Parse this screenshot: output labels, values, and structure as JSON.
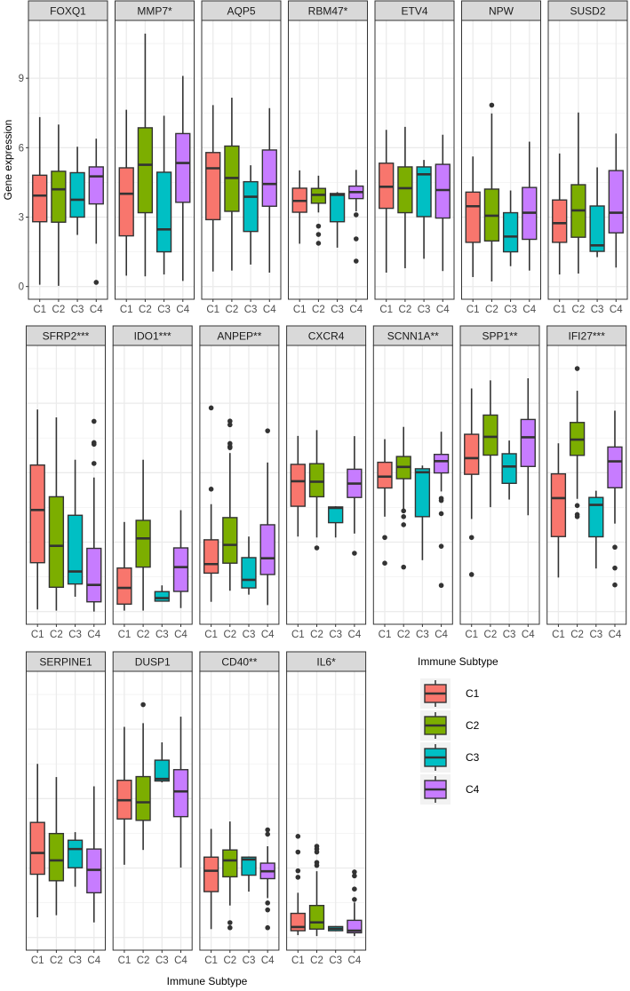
{
  "chart_data": {
    "type": "boxplot",
    "title": "",
    "xlabel": "Immune Subtype",
    "ylabel": "Gene expression",
    "ylim": [
      -0.55,
      11.5
    ],
    "yticks": [
      0,
      3,
      6,
      9
    ],
    "grid": true,
    "categories": [
      "C1",
      "C2",
      "C3",
      "C4"
    ],
    "colors": {
      "C1": "#F8766D",
      "C2": "#7CAE00",
      "C3": "#00BFC4",
      "C4": "#C77CFF"
    },
    "legend": {
      "title": "Immune Subtype",
      "entries": [
        "C1",
        "C2",
        "C3",
        "C4"
      ],
      "placement": "right-bottom"
    },
    "box_fields": [
      "lower_whisker",
      "q1",
      "median",
      "q3",
      "upper_whisker",
      "outliers"
    ],
    "panels": [
      {
        "gene": "FOXQ1",
        "row": 0,
        "col": 0,
        "boxes": [
          [
            0.08,
            2.8,
            3.93,
            4.81,
            7.32,
            []
          ],
          [
            0.03,
            2.78,
            4.2,
            4.98,
            7.0,
            []
          ],
          [
            2.23,
            3.0,
            3.75,
            4.92,
            6.04,
            []
          ],
          [
            1.85,
            3.57,
            4.76,
            5.17,
            6.39,
            [
              0.18
            ]
          ]
        ]
      },
      {
        "gene": "MMP7*",
        "row": 0,
        "col": 1,
        "boxes": [
          [
            0.47,
            2.19,
            4.01,
            5.13,
            7.64,
            []
          ],
          [
            0.44,
            3.19,
            5.26,
            6.86,
            10.93,
            []
          ],
          [
            0.52,
            1.5,
            2.47,
            4.94,
            7.38,
            []
          ],
          [
            0.24,
            3.64,
            5.34,
            6.61,
            9.1,
            []
          ]
        ]
      },
      {
        "gene": "AQP5",
        "row": 0,
        "col": 2,
        "boxes": [
          [
            0.65,
            2.89,
            5.11,
            5.79,
            7.84,
            []
          ],
          [
            0.69,
            3.25,
            4.69,
            6.07,
            8.16,
            []
          ],
          [
            0.95,
            2.38,
            3.88,
            4.53,
            5.24,
            []
          ],
          [
            0.6,
            3.47,
            4.43,
            5.9,
            7.71,
            []
          ]
        ]
      },
      {
        "gene": "RBM47*",
        "row": 0,
        "col": 3,
        "boxes": [
          [
            1.85,
            3.21,
            3.7,
            4.25,
            5.02,
            []
          ],
          [
            3.2,
            3.6,
            3.96,
            4.24,
            4.79,
            [
              2.61,
              2.25,
              1.87
            ]
          ],
          [
            1.68,
            2.8,
            3.96,
            4.02,
            4.08,
            []
          ],
          [
            3.25,
            3.8,
            4.08,
            4.34,
            5.04,
            [
              3.1,
              2.06,
              1.1
            ]
          ]
        ]
      },
      {
        "gene": "ETV4",
        "row": 0,
        "col": 4,
        "boxes": [
          [
            0.6,
            3.38,
            4.31,
            5.33,
            6.77,
            []
          ],
          [
            0.79,
            3.19,
            4.25,
            5.17,
            6.9,
            []
          ],
          [
            1.2,
            3.02,
            4.85,
            5.17,
            5.47,
            []
          ],
          [
            0.67,
            2.96,
            4.17,
            5.28,
            6.56,
            []
          ]
        ]
      },
      {
        "gene": "NPW",
        "row": 0,
        "col": 5,
        "boxes": [
          [
            0.41,
            1.91,
            3.47,
            4.08,
            5.62,
            []
          ],
          [
            0.22,
            1.97,
            3.06,
            4.21,
            7.48,
            [
              7.84
            ]
          ],
          [
            0.88,
            1.5,
            2.16,
            3.19,
            4.15,
            []
          ],
          [
            0.69,
            2.04,
            3.19,
            4.28,
            6.26,
            []
          ]
        ]
      },
      {
        "gene": "SUSD2",
        "row": 0,
        "col": 6,
        "boxes": [
          [
            0.52,
            1.91,
            2.74,
            3.74,
            5.75,
            []
          ],
          [
            0.56,
            2.13,
            3.29,
            4.4,
            7.52,
            []
          ],
          [
            1.27,
            1.52,
            1.78,
            3.48,
            5.15,
            []
          ],
          [
            0.82,
            2.32,
            3.19,
            5.01,
            6.61,
            []
          ]
        ]
      },
      {
        "gene": "SFRP2***",
        "row": 1,
        "col": 0,
        "boxes": [
          [
            0.09,
            2.11,
            4.39,
            6.33,
            8.73,
            []
          ],
          [
            0.04,
            1.05,
            2.84,
            4.96,
            8.39,
            []
          ],
          [
            0.64,
            1.19,
            1.73,
            4.16,
            6.56,
            []
          ],
          [
            0.0,
            0.42,
            1.15,
            2.73,
            5.79,
            [
              8.22,
              7.3,
              7.23,
              6.4
            ]
          ]
        ]
      },
      {
        "gene": "IDO1***",
        "row": 1,
        "col": 1,
        "boxes": [
          [
            0.04,
            0.32,
            1.02,
            1.88,
            3.87,
            []
          ],
          [
            0.04,
            1.92,
            3.16,
            3.94,
            6.56,
            []
          ],
          [
            0.45,
            0.45,
            0.58,
            0.86,
            1.13,
            []
          ],
          [
            0.15,
            0.87,
            1.92,
            2.75,
            4.38,
            []
          ]
        ]
      },
      {
        "gene": "ANPEP**",
        "row": 1,
        "col": 2,
        "boxes": [
          [
            0.42,
            1.66,
            2.05,
            3.1,
            4.64,
            [
              8.8,
              5.29
            ]
          ],
          [
            0.9,
            2.09,
            2.88,
            4.06,
            6.85,
            [
              8.23,
              8.07,
              7.26,
              7.13,
              7.08
            ]
          ],
          [
            0.73,
            1.02,
            1.37,
            2.33,
            3.24,
            []
          ],
          [
            0.28,
            1.6,
            2.3,
            3.75,
            6.44,
            [
              7.81
            ]
          ]
        ]
      },
      {
        "gene": "CXCR4",
        "row": 1,
        "col": 3,
        "boxes": [
          [
            3.24,
            4.55,
            5.63,
            6.36,
            7.59,
            []
          ],
          [
            3.2,
            4.96,
            5.61,
            6.39,
            7.84,
            [
              2.75
            ]
          ],
          [
            3.2,
            3.84,
            4.48,
            4.52,
            4.55,
            []
          ],
          [
            3.37,
            4.93,
            5.53,
            6.15,
            7.58,
            [
              2.52
            ]
          ]
        ]
      },
      {
        "gene": "SCNN1A**",
        "row": 1,
        "col": 4,
        "boxes": [
          [
            4.1,
            5.34,
            5.83,
            6.45,
            7.45,
            [
              3.2,
              2.09
            ]
          ],
          [
            4.42,
            5.74,
            6.25,
            6.7,
            7.98,
            [
              4.35,
              4.1,
              3.75,
              1.92
            ]
          ],
          [
            2.22,
            4.1,
            6.02,
            6.17,
            6.31,
            []
          ],
          [
            5.19,
            5.99,
            6.5,
            6.79,
            7.77,
            [
              4.89,
              4.8,
              4.23,
              2.82,
              1.13
            ]
          ]
        ]
      },
      {
        "gene": "SPP1**",
        "row": 1,
        "col": 5,
        "boxes": [
          [
            4.0,
            5.93,
            6.63,
            7.66,
            9.64,
            [
              3.2,
              1.6
            ]
          ],
          [
            4.51,
            6.76,
            7.55,
            8.49,
            9.99,
            []
          ],
          [
            4.84,
            5.54,
            6.27,
            6.82,
            7.39,
            []
          ],
          [
            4.16,
            6.27,
            7.53,
            8.3,
            10.08,
            []
          ]
        ]
      },
      {
        "gene": "IFI27***",
        "row": 1,
        "col": 6,
        "boxes": [
          [
            1.47,
            3.24,
            4.9,
            5.95,
            7.27,
            []
          ],
          [
            4.87,
            6.75,
            7.43,
            8.17,
            9.54,
            [
              10.5,
              4.58,
              4.19,
              4.1
            ]
          ],
          [
            1.86,
            3.23,
            4.61,
            4.93,
            5.22,
            []
          ],
          [
            3.8,
            5.35,
            6.49,
            7.11,
            8.68,
            [
              2.78,
              1.88,
              1.15
            ]
          ]
        ]
      },
      {
        "gene": "SERPINE1",
        "row": 2,
        "col": 0,
        "boxes": [
          [
            0.87,
            2.73,
            3.65,
            4.97,
            7.5,
            []
          ],
          [
            0.96,
            2.45,
            3.33,
            4.49,
            6.93,
            []
          ],
          [
            2.19,
            3.01,
            3.82,
            4.2,
            4.55,
            []
          ],
          [
            0.65,
            1.93,
            2.92,
            3.82,
            6.53,
            []
          ]
        ]
      },
      {
        "gene": "DUSP1",
        "row": 2,
        "col": 1,
        "boxes": [
          [
            3.14,
            5.12,
            5.93,
            6.79,
            9.1,
            []
          ],
          [
            3.78,
            5.06,
            5.84,
            6.95,
            9.26,
            [
              10.06
            ]
          ],
          [
            6.7,
            6.76,
            6.85,
            7.66,
            8.43,
            []
          ],
          [
            3.02,
            5.22,
            6.31,
            7.25,
            9.54,
            []
          ]
        ]
      },
      {
        "gene": "CD40**",
        "row": 2,
        "col": 2,
        "boxes": [
          [
            0.36,
            1.98,
            2.88,
            3.47,
            4.69,
            []
          ],
          [
            1.38,
            2.62,
            3.33,
            3.78,
            5.01,
            [
              0.64,
              0.42
            ]
          ],
          [
            1.98,
            2.69,
            3.37,
            3.47,
            3.5,
            []
          ],
          [
            1.7,
            2.54,
            2.86,
            3.21,
            3.94,
            [
              4.65,
              4.46,
              1.49,
              1.19,
              0.42
            ]
          ]
        ]
      },
      {
        "gene": "IL6*",
        "row": 2,
        "col": 3,
        "boxes": [
          [
            0.1,
            0.29,
            0.45,
            1.04,
            1.93,
            [
              4.37,
              3.69,
              2.88,
              2.6
            ]
          ],
          [
            0.06,
            0.36,
            0.65,
            1.38,
            2.86,
            [
              3.94,
              3.82,
              3.69,
              3.24,
              3.11
            ]
          ],
          [
            0.27,
            0.29,
            0.38,
            0.47,
            0.49,
            []
          ],
          [
            0.06,
            0.2,
            0.29,
            0.74,
            1.51,
            [
              2.83,
              2.66,
              2.09,
              1.64
            ]
          ]
        ]
      }
    ]
  }
}
